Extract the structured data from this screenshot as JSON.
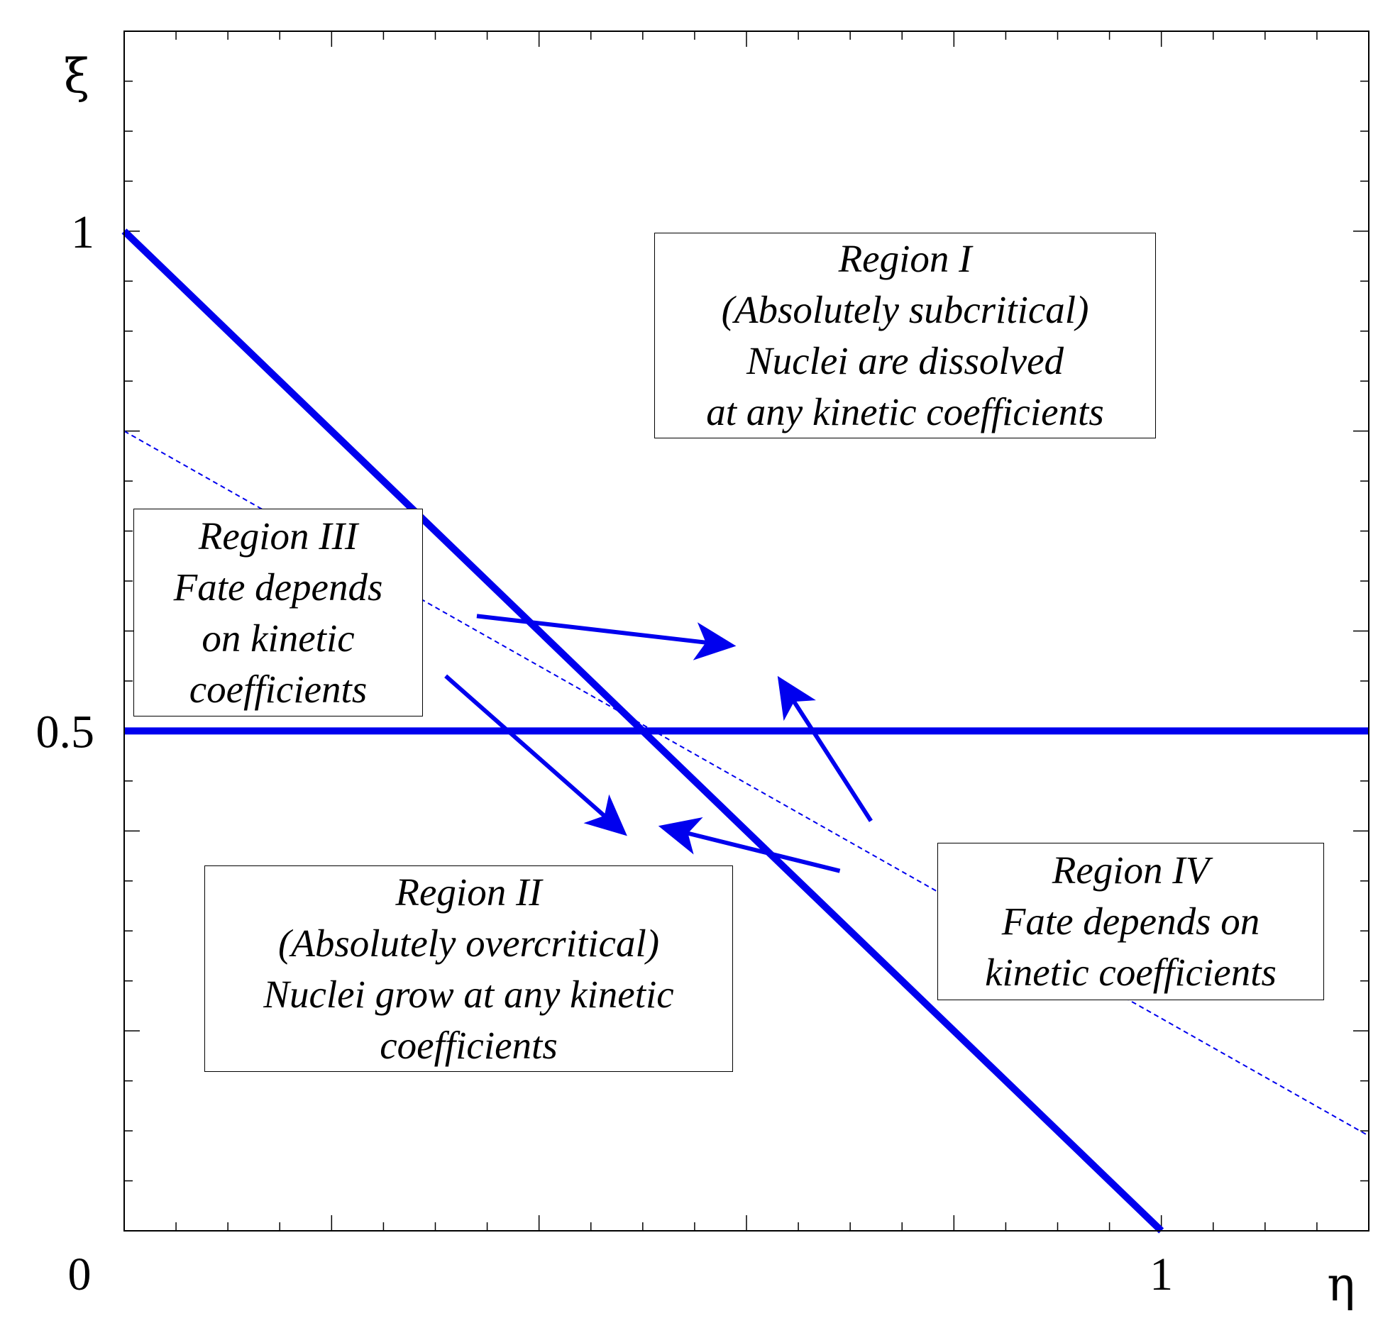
{
  "chart_data": {
    "type": "line",
    "title": "",
    "xlabel": "η",
    "ylabel": "ξ",
    "xlim": [
      0,
      1.2
    ],
    "ylim": [
      0,
      1.2
    ],
    "x_tick_labels": [
      {
        "value": 0,
        "label": "0"
      },
      {
        "value": 1,
        "label": "1"
      }
    ],
    "y_tick_labels": [
      {
        "value": 0.5,
        "label": "0.5"
      },
      {
        "value": 1,
        "label": "1"
      }
    ],
    "x_major_ticks": [
      0.2,
      0.4,
      0.6,
      0.8,
      1.0
    ],
    "y_major_ticks": [
      0.2,
      0.4,
      0.6,
      0.8,
      1.0
    ],
    "minor_tick_step": 0.05,
    "grid": false,
    "line_color": "#0000ee",
    "series": [
      {
        "style": "thick-solid",
        "x": [
          0,
          1.0
        ],
        "y": [
          1.0,
          0
        ]
      },
      {
        "style": "thick-solid",
        "x": [
          0,
          1.2
        ],
        "y": [
          0.5,
          0.5
        ]
      },
      {
        "style": "thin-dashed",
        "x": [
          0,
          1.2
        ],
        "y": [
          0.8,
          0.095
        ]
      }
    ],
    "arrows": [
      {
        "from": [
          0.34,
          0.615
        ],
        "to": [
          0.59,
          0.585
        ]
      },
      {
        "from": [
          0.31,
          0.555
        ],
        "to": [
          0.485,
          0.395
        ]
      },
      {
        "from": [
          0.69,
          0.36
        ],
        "to": [
          0.515,
          0.405
        ]
      },
      {
        "from": [
          0.72,
          0.41
        ],
        "to": [
          0.63,
          0.555
        ]
      }
    ],
    "annotations": [
      {
        "id": "region-1",
        "lines": [
          "Region I",
          "(Absolutely subcritical)",
          "Nuclei are dissolved",
          "at any kinetic coefficients"
        ]
      },
      {
        "id": "region-2",
        "lines": [
          "Region II",
          "(Absolutely overcritical)",
          "Nuclei grow at any kinetic",
          "coefficients"
        ]
      },
      {
        "id": "region-3",
        "lines": [
          "Region III",
          "Fate depends",
          "on kinetic",
          "coefficients"
        ]
      },
      {
        "id": "region-4",
        "lines": [
          "Region IV",
          "Fate depends on",
          "kinetic coefficients"
        ]
      }
    ]
  }
}
